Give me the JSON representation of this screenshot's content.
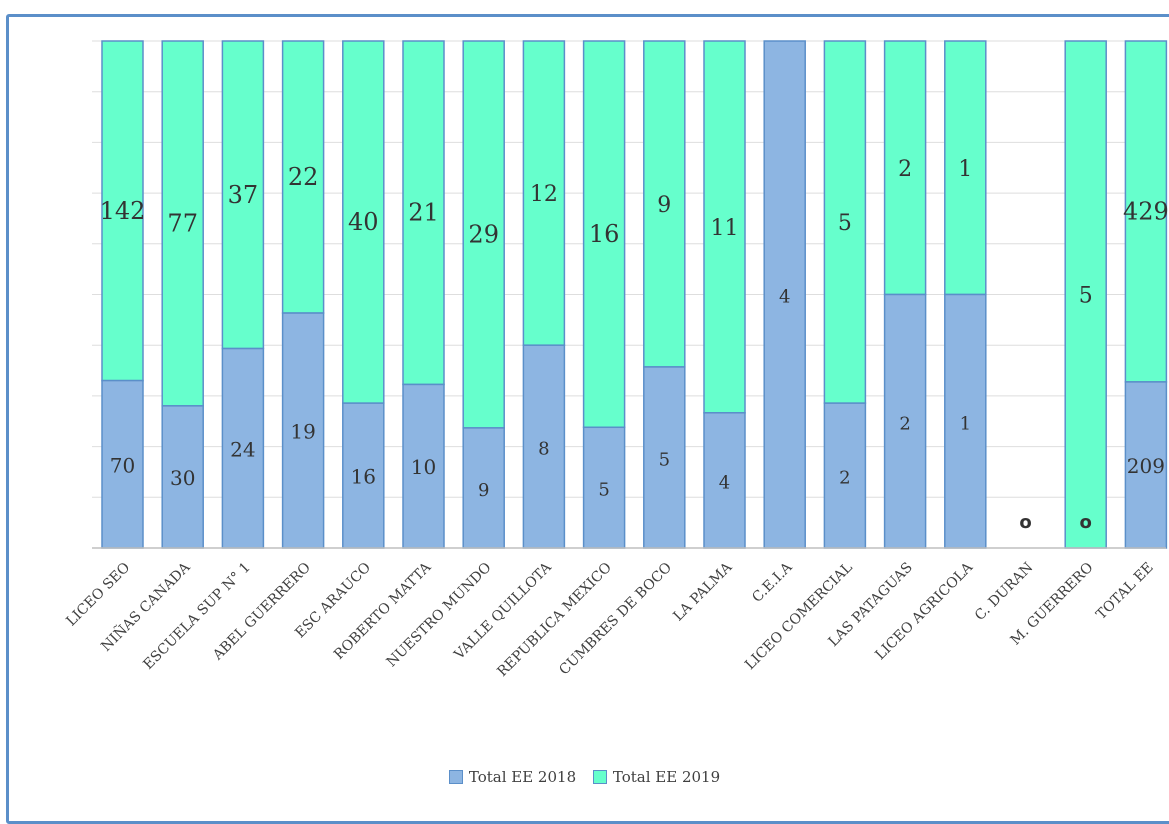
{
  "chart_data": {
    "type": "bar",
    "stacked": true,
    "title": "",
    "xlabel": "",
    "ylabel": "",
    "grid": true,
    "legend_position": "bottom",
    "categories": [
      "LICEO SEO",
      "NIÑAS CANADA",
      "ESCUELA SUP N° 1",
      "ABEL GUERRERO",
      "ESC ARAUCO",
      "ROBERTO MATTA",
      "NUESTRO MUNDO",
      "VALLE QUILLOTA",
      "REPUBLICA MEXICO",
      "CUMBRES DE BOCO",
      "LA PALMA",
      "C.E.I.A",
      "LICEO COMERCIAL",
      "LAS PATAGUAS",
      "LICEO AGRICOLA",
      "C. DURAN",
      "M. GUERRERO",
      "TOTAL EE"
    ],
    "series": [
      {
        "name": "Total EE 2018",
        "color": "#8db5e2",
        "values": [
          70,
          30,
          24,
          19,
          16,
          10,
          9,
          8,
          5,
          5,
          4,
          4,
          2,
          2,
          1,
          0,
          0,
          209
        ]
      },
      {
        "name": "Total EE 2019",
        "color": "#66ffcc",
        "values": [
          142,
          77,
          37,
          22,
          40,
          21,
          29,
          12,
          16,
          9,
          11,
          null,
          5,
          2,
          1,
          null,
          5,
          429
        ]
      }
    ],
    "label_texts": {
      "2018": [
        "70",
        "30",
        "24",
        "19",
        "16",
        "10",
        "9",
        "8",
        "5",
        "5",
        "4",
        "4",
        "2",
        "2",
        "1",
        "o",
        "o",
        "209"
      ],
      "2019": [
        "142",
        "77",
        "37",
        "22",
        "40",
        "21",
        "29",
        "12",
        "16",
        "9",
        "11",
        "",
        "5",
        "2",
        "1",
        "",
        "5",
        "429"
      ]
    },
    "normalized_to_100_percent": true,
    "outline_color": "#5b8fc9"
  }
}
